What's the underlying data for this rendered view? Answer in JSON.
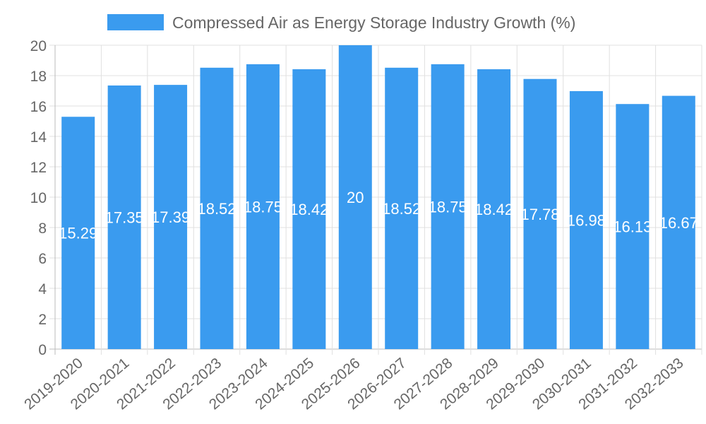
{
  "chart_data": {
    "type": "bar",
    "title": "",
    "legend": [
      {
        "label": "Compressed Air as Energy Storage Industry Growth (%)",
        "color": "#3a9bef"
      }
    ],
    "legend_placement": "top",
    "categories": [
      "2019-2020",
      "2020-2021",
      "2021-2022",
      "2022-2023",
      "2023-2024",
      "2024-2025",
      "2025-2026",
      "2026-2027",
      "2027-2028",
      "2028-2029",
      "2029-2030",
      "2030-2031",
      "2031-2032",
      "2032-2033"
    ],
    "values": [
      15.29,
      17.35,
      17.39,
      18.52,
      18.75,
      18.42,
      20,
      18.52,
      18.75,
      18.42,
      17.78,
      16.98,
      16.13,
      16.67
    ],
    "data_labels": [
      "15.29",
      "17.35",
      "17.39",
      "18.52",
      "18.75",
      "18.42",
      "20",
      "18.52",
      "18.75",
      "18.42",
      "17.78",
      "16.98",
      "16.13",
      "16.67"
    ],
    "yticks": [
      "0",
      "2",
      "4",
      "6",
      "8",
      "10",
      "12",
      "14",
      "16",
      "18",
      "20"
    ],
    "ylim": [
      0,
      20
    ],
    "grid": true,
    "xlabel": "",
    "ylabel": ""
  }
}
